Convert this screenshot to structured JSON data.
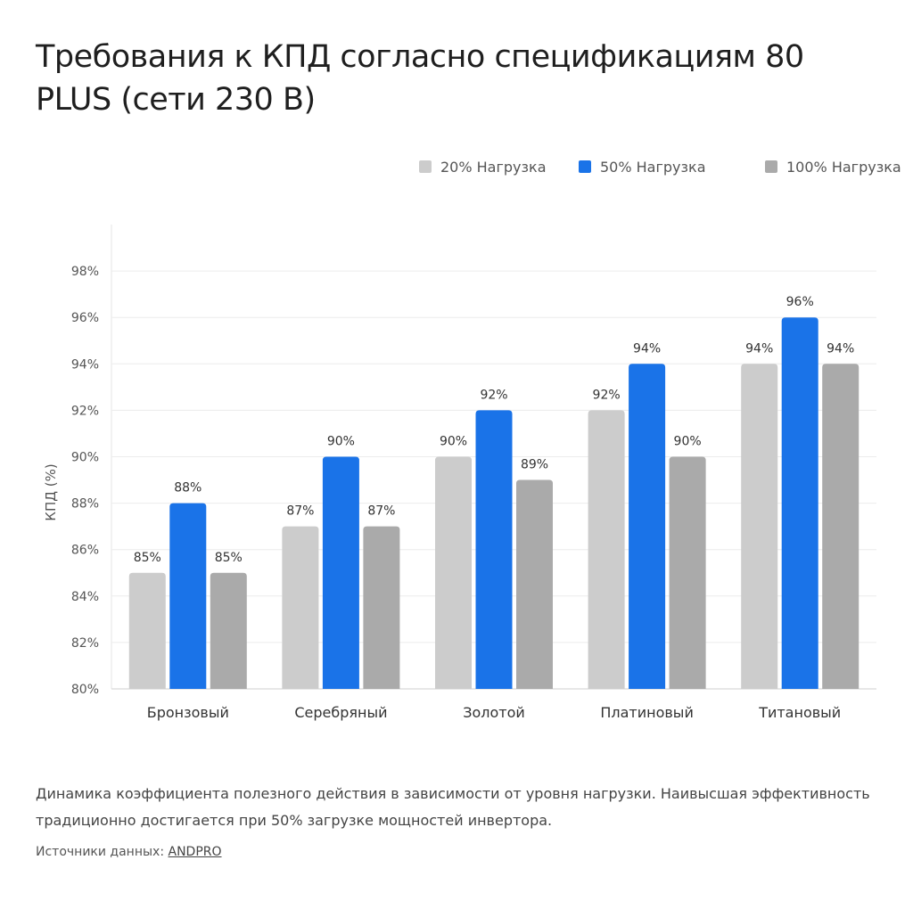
{
  "chart_data": {
    "type": "bar",
    "title": "Требования к КПД согласно спецификациям 80 PLUS (сети 230 В)",
    "xlabel": "",
    "ylabel": "КПД (%)",
    "ylim": [
      80,
      100
    ],
    "yticks": [
      80,
      82,
      84,
      86,
      88,
      90,
      92,
      94,
      96,
      98
    ],
    "ytick_suffix": "%",
    "grid": true,
    "legend_position": "top-right",
    "categories": [
      "Бронзовый",
      "Серебряный",
      "Золотой",
      "Платиновый",
      "Титановый"
    ],
    "series": [
      {
        "name": "20% Нагрузка",
        "color": "#cccccc",
        "values": [
          85,
          87,
          90,
          92,
          94
        ]
      },
      {
        "name": "50% Нагрузка",
        "color": "#1a73e8",
        "values": [
          88,
          90,
          92,
          94,
          96
        ]
      },
      {
        "name": "100% Нагрузка",
        "color": "#aaaaaa",
        "values": [
          85,
          87,
          89,
          90,
          94
        ]
      }
    ]
  },
  "description": "Динамика коэффициента полезного действия в зависимости от уровня нагрузки. Наивысшая эффективность традиционно достигается при 50% загрузке мощностей инвертора.",
  "source_label": "Источники данных:",
  "source_link": "ANDPRO"
}
